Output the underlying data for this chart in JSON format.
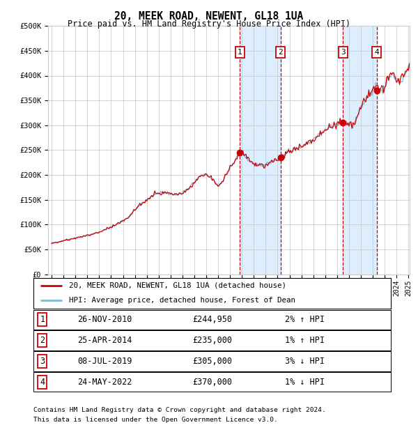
{
  "title": "20, MEEK ROAD, NEWENT, GL18 1UA",
  "subtitle": "Price paid vs. HM Land Registry's House Price Index (HPI)",
  "legend_line1": "20, MEEK ROAD, NEWENT, GL18 1UA (detached house)",
  "legend_line2": "HPI: Average price, detached house, Forest of Dean",
  "transactions": [
    {
      "num": 1,
      "date": "26-NOV-2010",
      "price": 244950,
      "pct": "2%",
      "dir": "↑",
      "hpi_dir": "HPI"
    },
    {
      "num": 2,
      "date": "25-APR-2014",
      "price": 235000,
      "pct": "1%",
      "dir": "↑",
      "hpi_dir": "HPI"
    },
    {
      "num": 3,
      "date": "08-JUL-2019",
      "price": 305000,
      "pct": "3%",
      "dir": "↓",
      "hpi_dir": "HPI"
    },
    {
      "num": 4,
      "date": "24-MAY-2022",
      "price": 370000,
      "pct": "1%",
      "dir": "↓",
      "hpi_dir": "HPI"
    }
  ],
  "footnote1": "Contains HM Land Registry data © Crown copyright and database right 2024.",
  "footnote2": "This data is licensed under the Open Government Licence v3.0.",
  "hpi_color": "#7fb8d8",
  "price_color": "#cc0000",
  "dot_color": "#cc0000",
  "vline_color": "#cc0000",
  "shade_color": "#ddeeff",
  "grid_color": "#cccccc",
  "bg_color": "#ffffff",
  "ylim": [
    0,
    500000
  ],
  "yticks": [
    0,
    50000,
    100000,
    150000,
    200000,
    250000,
    300000,
    350000,
    400000,
    450000,
    500000
  ],
  "start_year": 1995,
  "end_year": 2025,
  "waypoints": [
    [
      1995.0,
      62000
    ],
    [
      1996.0,
      68000
    ],
    [
      1997.0,
      73000
    ],
    [
      1998.0,
      78000
    ],
    [
      1999.0,
      85000
    ],
    [
      2000.0,
      95000
    ],
    [
      2000.8,
      105000
    ],
    [
      2001.5,
      115000
    ],
    [
      2002.0,
      130000
    ],
    [
      2002.5,
      140000
    ],
    [
      2003.0,
      150000
    ],
    [
      2003.5,
      158000
    ],
    [
      2004.0,
      163000
    ],
    [
      2004.5,
      165000
    ],
    [
      2005.0,
      162000
    ],
    [
      2005.5,
      160000
    ],
    [
      2006.0,
      165000
    ],
    [
      2006.5,
      172000
    ],
    [
      2007.0,
      185000
    ],
    [
      2007.5,
      198000
    ],
    [
      2008.0,
      200000
    ],
    [
      2008.5,
      192000
    ],
    [
      2009.0,
      178000
    ],
    [
      2009.3,
      185000
    ],
    [
      2009.6,
      198000
    ],
    [
      2010.0,
      215000
    ],
    [
      2010.5,
      230000
    ],
    [
      2010.83,
      248000
    ],
    [
      2011.0,
      245000
    ],
    [
      2011.5,
      232000
    ],
    [
      2012.0,
      222000
    ],
    [
      2012.5,
      218000
    ],
    [
      2013.0,
      220000
    ],
    [
      2013.5,
      228000
    ],
    [
      2014.0,
      232000
    ],
    [
      2014.3,
      237000
    ],
    [
      2014.5,
      240000
    ],
    [
      2015.0,
      248000
    ],
    [
      2015.5,
      252000
    ],
    [
      2016.0,
      258000
    ],
    [
      2016.5,
      265000
    ],
    [
      2017.0,
      272000
    ],
    [
      2017.5,
      282000
    ],
    [
      2018.0,
      290000
    ],
    [
      2018.5,
      298000
    ],
    [
      2019.0,
      302000
    ],
    [
      2019.5,
      308000
    ],
    [
      2019.8,
      305000
    ],
    [
      2020.0,
      302000
    ],
    [
      2020.3,
      298000
    ],
    [
      2020.6,
      310000
    ],
    [
      2021.0,
      335000
    ],
    [
      2021.3,
      350000
    ],
    [
      2021.6,
      362000
    ],
    [
      2022.0,
      370000
    ],
    [
      2022.4,
      382000
    ],
    [
      2022.5,
      375000
    ],
    [
      2022.8,
      372000
    ],
    [
      2023.0,
      378000
    ],
    [
      2023.3,
      395000
    ],
    [
      2023.6,
      405000
    ],
    [
      2023.9,
      395000
    ],
    [
      2024.2,
      388000
    ],
    [
      2024.5,
      395000
    ],
    [
      2024.8,
      405000
    ],
    [
      2025.0,
      420000
    ]
  ],
  "trans_dates_decimal": [
    2010.833,
    2014.25,
    2019.5,
    2022.333
  ],
  "trans_prices": [
    244950,
    235000,
    305000,
    370000
  ]
}
